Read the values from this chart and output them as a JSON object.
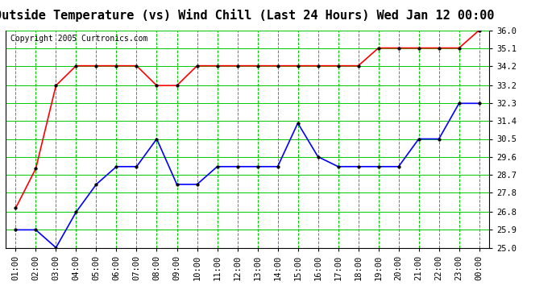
{
  "title": "Outside Temperature (vs) Wind Chill (Last 24 Hours) Wed Jan 12 00:00",
  "copyright": "Copyright 2005 Curtronics.com",
  "x_labels": [
    "01:00",
    "02:00",
    "03:00",
    "04:00",
    "05:00",
    "06:00",
    "07:00",
    "08:00",
    "09:00",
    "10:00",
    "11:00",
    "12:00",
    "13:00",
    "14:00",
    "15:00",
    "16:00",
    "17:00",
    "18:00",
    "19:00",
    "20:00",
    "21:00",
    "22:00",
    "23:00",
    "00:00"
  ],
  "red_line": [
    27.0,
    29.0,
    33.2,
    34.2,
    34.2,
    34.2,
    34.2,
    33.2,
    33.2,
    34.2,
    34.2,
    34.2,
    34.2,
    34.2,
    34.2,
    34.2,
    34.2,
    34.2,
    35.1,
    35.1,
    35.1,
    35.1,
    35.1,
    36.0
  ],
  "blue_line": [
    25.9,
    25.9,
    25.0,
    26.8,
    28.2,
    29.1,
    29.1,
    30.5,
    28.2,
    28.2,
    29.1,
    29.1,
    29.1,
    29.1,
    31.3,
    29.6,
    29.1,
    29.1,
    29.1,
    29.1,
    30.5,
    30.5,
    32.3,
    32.3
  ],
  "ylim": [
    25.0,
    36.0
  ],
  "yticks": [
    25.0,
    25.9,
    26.8,
    27.8,
    28.7,
    29.6,
    30.5,
    31.4,
    32.3,
    33.2,
    34.2,
    35.1,
    36.0
  ],
  "bg_color": "#ffffff",
  "plot_bg_color": "#ffffff",
  "grid_color_h": "#00cc00",
  "grid_color_v": "#00cc00",
  "red_color": "#ff0000",
  "blue_color": "#0000ff",
  "title_fontsize": 11,
  "copyright_fontsize": 7,
  "tick_fontsize": 7.5
}
